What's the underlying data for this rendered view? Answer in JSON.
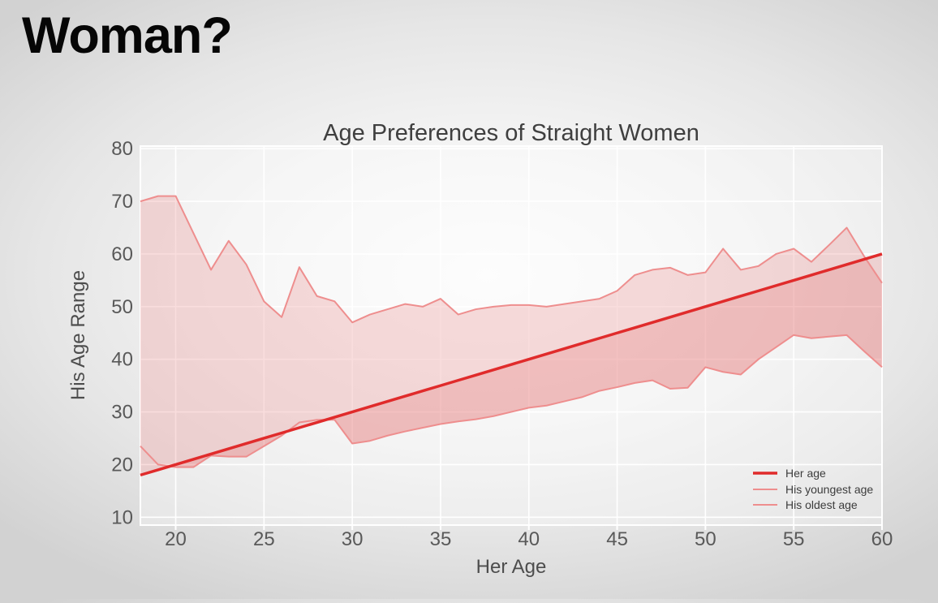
{
  "page": {
    "heading": "Woman?"
  },
  "chart_data": {
    "type": "area",
    "title": "Age Preferences of Straight Women",
    "xlabel": "Her Age",
    "ylabel": "His Age Range",
    "xlim": [
      18,
      60
    ],
    "ylim": [
      8.5,
      80.5
    ],
    "x_ticks": [
      20,
      25,
      30,
      35,
      40,
      45,
      50,
      55,
      60
    ],
    "y_ticks": [
      10,
      20,
      30,
      40,
      50,
      60,
      70,
      80
    ],
    "grid": true,
    "grid_color": "#ffffff",
    "panel_color": "rgba(255,255,255,0.30)",
    "legend_position": "lower right",
    "fill_color": "#e25555",
    "fill_opacity": 0.2,
    "x": [
      18,
      19,
      20,
      21,
      22,
      23,
      24,
      25,
      26,
      27,
      28,
      29,
      30,
      31,
      32,
      33,
      34,
      35,
      36,
      37,
      38,
      39,
      40,
      41,
      42,
      43,
      44,
      45,
      46,
      47,
      48,
      49,
      50,
      51,
      52,
      53,
      54,
      55,
      56,
      57,
      58,
      59,
      60
    ],
    "series": [
      {
        "name": "Her age",
        "color": "#e02b2b",
        "width": 3.5,
        "values": [
          18,
          19,
          20,
          21,
          22,
          23,
          24,
          25,
          26,
          27,
          28,
          29,
          30,
          31,
          32,
          33,
          34,
          35,
          36,
          37,
          38,
          39,
          40,
          41,
          42,
          43,
          44,
          45,
          46,
          47,
          48,
          49,
          50,
          51,
          52,
          53,
          54,
          55,
          56,
          57,
          58,
          59,
          60
        ]
      },
      {
        "name": "His youngest age",
        "color": "#ee8e8e",
        "width": 2,
        "values": [
          23.5,
          20,
          19.5,
          19.5,
          21.7,
          21.5,
          21.5,
          23.5,
          25.5,
          28,
          28.5,
          28.5,
          24,
          24.5,
          25.5,
          26.3,
          27,
          27.7,
          28.2,
          28.6,
          29.2,
          30,
          30.8,
          31.2,
          32,
          32.8,
          34,
          34.7,
          35.5,
          36,
          34.4,
          34.6,
          38.5,
          37.6,
          37.1,
          40,
          42.3,
          44.6,
          44,
          44.3,
          44.6,
          41.5,
          38.5
        ]
      },
      {
        "name": "His oldest age",
        "color": "#ee8e8e",
        "width": 2,
        "values": [
          70,
          71,
          71,
          64,
          57,
          62.5,
          58,
          51,
          48,
          57.5,
          52,
          51,
          47,
          48.5,
          49.5,
          50.5,
          50,
          51.5,
          48.5,
          49.5,
          50,
          50.3,
          50.3,
          50,
          50.5,
          51,
          51.5,
          53,
          56,
          57,
          57.4,
          56,
          56.5,
          61,
          57,
          57.7,
          60,
          61,
          58.5,
          61.7,
          65,
          59.5,
          54.5
        ]
      }
    ],
    "fills": [
      [
        "His youngest age",
        "His oldest age"
      ],
      [
        "Her age",
        "His youngest age"
      ]
    ]
  }
}
